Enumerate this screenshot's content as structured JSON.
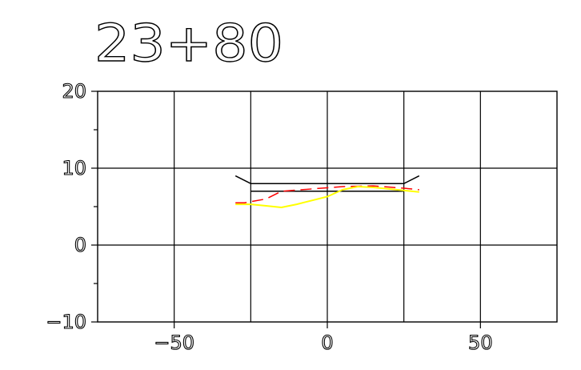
{
  "chart_data": {
    "type": "line",
    "title": "23+80",
    "xlabel": "",
    "ylabel": "",
    "xlim": [
      -75,
      75
    ],
    "ylim": [
      -10,
      20
    ],
    "grid": true,
    "x_ticks": [
      -50,
      0,
      50
    ],
    "x_tick_labels": [
      "−50",
      "0",
      "50"
    ],
    "y_ticks": [
      -10,
      0,
      10,
      20
    ],
    "y_tick_labels": [
      "−10",
      "0",
      "10",
      "20"
    ],
    "y_minor_ticks": [
      -5,
      5,
      15
    ],
    "series": [
      {
        "style": "solid",
        "color": "#000000",
        "x": [
          -30,
          -25,
          25,
          30
        ],
        "y": [
          9.0,
          8.0,
          8.0,
          9.0
        ]
      },
      {
        "style": "solid",
        "color": "#000000",
        "x": [
          -25,
          25
        ],
        "y": [
          7.0,
          7.0
        ]
      },
      {
        "style": "dashed",
        "color": "#ff0000",
        "x": [
          -30,
          -27,
          -20,
          -15,
          -5,
          5,
          15,
          25,
          30
        ],
        "y": [
          5.5,
          5.5,
          6.0,
          7.0,
          7.3,
          7.6,
          7.7,
          7.4,
          7.2
        ]
      },
      {
        "style": "solid",
        "color": "#ffff00",
        "x": [
          -30,
          -25,
          -20,
          -15,
          -10,
          0,
          5,
          10,
          15,
          20,
          25,
          30
        ],
        "y": [
          5.3,
          5.3,
          5.1,
          4.9,
          5.3,
          6.3,
          7.2,
          7.6,
          7.5,
          7.3,
          7.1,
          6.9
        ]
      }
    ]
  }
}
